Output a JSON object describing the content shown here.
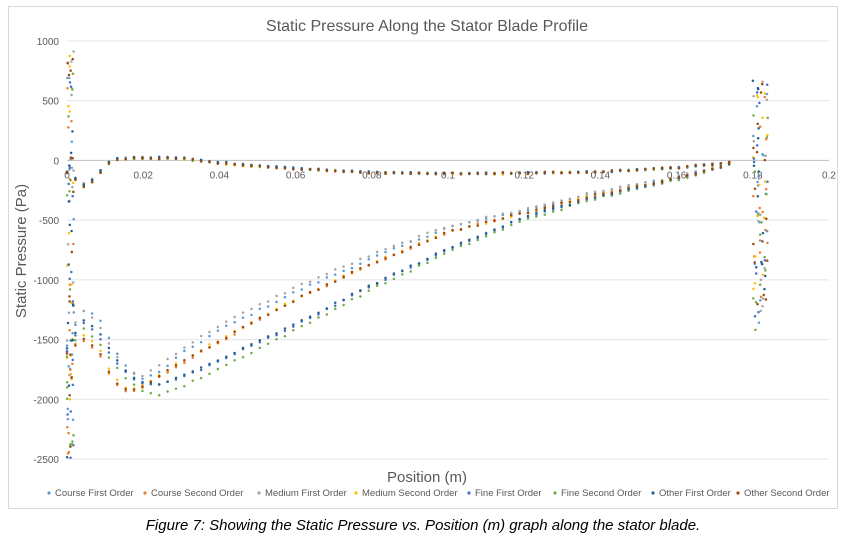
{
  "figure": {
    "caption": "Figure 7: Showing the Static Pressure vs. Position (m) graph along the stator blade."
  },
  "chart_data": {
    "type": "scatter",
    "title": "Static Pressure Along the Stator Blade Profile",
    "xlabel": "Position (m)",
    "ylabel": "Static Pressure (Pa)",
    "xlim": [
      0,
      0.2
    ],
    "ylim": [
      -2500,
      1000
    ],
    "x_ticks": [
      0,
      0.02,
      0.04,
      0.06,
      0.08,
      0.1,
      0.12,
      0.14,
      0.16,
      0.18,
      0.2
    ],
    "x_tick_labels": [
      "0",
      "0.02",
      "0.04",
      "0.06",
      "0.08",
      "0.1",
      "0.12",
      "0.14",
      "0.16",
      "0.18",
      "0.2"
    ],
    "y_ticks": [
      1000,
      500,
      0,
      -500,
      -1000,
      -1500,
      -2000,
      -2500
    ],
    "y_tick_labels": [
      "1000",
      "500",
      "0",
      "-500",
      "-1000",
      "-1500",
      "-2000",
      "-2500"
    ],
    "grid": "horizontal",
    "legend_position": "bottom",
    "series": [
      {
        "name": "Course First Order",
        "color": "#5B9BD5",
        "upper": {
          "x": [
            0.0,
            0.005,
            0.012,
            0.02,
            0.03,
            0.04,
            0.06,
            0.08,
            0.1,
            0.12,
            0.14,
            0.16,
            0.172,
            0.176
          ],
          "y": [
            -100,
            -220,
            15,
            25,
            20,
            -20,
            -65,
            -100,
            -110,
            -105,
            -95,
            -60,
            -25,
            -10
          ]
        },
        "lower": {
          "x": [
            0.0,
            0.004,
            0.008,
            0.012,
            0.016,
            0.02,
            0.024,
            0.03,
            0.04,
            0.06,
            0.08,
            0.1,
            0.12,
            0.14,
            0.16,
            0.172,
            0.176
          ],
          "y": [
            -1550,
            -1250,
            -1300,
            -1550,
            -1750,
            -1830,
            -1780,
            -1620,
            -1420,
            -1100,
            -820,
            -560,
            -420,
            -260,
            -140,
            -40,
            -10
          ]
        }
      },
      {
        "name": "Course Second Order",
        "color": "#ED7D31",
        "upper": {
          "x": [
            0.0,
            0.005,
            0.012,
            0.02,
            0.03,
            0.04,
            0.06,
            0.08,
            0.1,
            0.12,
            0.14,
            0.16,
            0.172,
            0.176
          ],
          "y": [
            -100,
            -210,
            10,
            20,
            15,
            -25,
            -70,
            -105,
            -110,
            -105,
            -95,
            -60,
            -25,
            -10
          ]
        },
        "lower": {
          "x": [
            0.0,
            0.004,
            0.008,
            0.012,
            0.016,
            0.02,
            0.024,
            0.03,
            0.04,
            0.06,
            0.08,
            0.1,
            0.12,
            0.14,
            0.16,
            0.172,
            0.176
          ],
          "y": [
            -1600,
            -1500,
            -1600,
            -1850,
            -1950,
            -1900,
            -1820,
            -1700,
            -1520,
            -1170,
            -870,
            -600,
            -440,
            -280,
            -150,
            -45,
            -10
          ]
        }
      },
      {
        "name": "Medium First Order",
        "color": "#A5A5A5",
        "upper": {
          "x": [
            0.0,
            0.005,
            0.012,
            0.02,
            0.03,
            0.04,
            0.06,
            0.08,
            0.1,
            0.12,
            0.14,
            0.16,
            0.172,
            0.176
          ],
          "y": [
            -100,
            -200,
            10,
            25,
            15,
            -20,
            -70,
            -100,
            -110,
            -105,
            -95,
            -60,
            -25,
            -10
          ]
        },
        "lower": {
          "x": [
            0.0,
            0.004,
            0.008,
            0.012,
            0.016,
            0.02,
            0.024,
            0.03,
            0.04,
            0.06,
            0.08,
            0.1,
            0.12,
            0.14,
            0.16,
            0.172,
            0.176
          ],
          "y": [
            -1500,
            -1250,
            -1350,
            -1600,
            -1780,
            -1800,
            -1720,
            -1580,
            -1380,
            -1060,
            -790,
            -550,
            -410,
            -255,
            -140,
            -40,
            -10
          ]
        }
      },
      {
        "name": "Medium Second Order",
        "color": "#FFC000",
        "upper": {
          "x": [
            0.0,
            0.005,
            0.012,
            0.02,
            0.03,
            0.04,
            0.06,
            0.08,
            0.1,
            0.12,
            0.14,
            0.16,
            0.172,
            0.176
          ],
          "y": [
            -100,
            -230,
            5,
            20,
            10,
            -30,
            -70,
            -100,
            -115,
            -110,
            -95,
            -60,
            -25,
            -10
          ]
        },
        "lower": {
          "x": [
            0.0,
            0.004,
            0.008,
            0.012,
            0.016,
            0.02,
            0.024,
            0.03,
            0.04,
            0.06,
            0.08,
            0.1,
            0.12,
            0.14,
            0.16,
            0.172,
            0.176
          ],
          "y": [
            -1650,
            -1450,
            -1550,
            -1800,
            -1930,
            -1880,
            -1800,
            -1680,
            -1500,
            -1160,
            -860,
            -600,
            -440,
            -280,
            -150,
            -45,
            -10
          ]
        }
      },
      {
        "name": "Fine First Order",
        "color": "#4472C4",
        "upper": {
          "x": [
            0.0,
            0.005,
            0.012,
            0.02,
            0.03,
            0.04,
            0.06,
            0.08,
            0.1,
            0.12,
            0.14,
            0.16,
            0.172,
            0.176
          ],
          "y": [
            -100,
            -220,
            10,
            25,
            20,
            -20,
            -65,
            -100,
            -110,
            -105,
            -95,
            -60,
            -25,
            -10
          ]
        },
        "lower": {
          "x": [
            0.0,
            0.004,
            0.008,
            0.012,
            0.016,
            0.02,
            0.024,
            0.03,
            0.04,
            0.06,
            0.08,
            0.1,
            0.12,
            0.14,
            0.16,
            0.172,
            0.176
          ],
          "y": [
            -1600,
            -1350,
            -1450,
            -1650,
            -1800,
            -1870,
            -1880,
            -1820,
            -1680,
            -1380,
            -1050,
            -750,
            -480,
            -300,
            -160,
            -50,
            -10
          ]
        }
      },
      {
        "name": "Fine Second Order",
        "color": "#70AD47",
        "upper": {
          "x": [
            0.0,
            0.005,
            0.012,
            0.02,
            0.03,
            0.04,
            0.06,
            0.08,
            0.1,
            0.12,
            0.14,
            0.16,
            0.172,
            0.176
          ],
          "y": [
            -100,
            -240,
            5,
            20,
            15,
            -25,
            -70,
            -105,
            -110,
            -105,
            -95,
            -60,
            -25,
            -10
          ]
        },
        "lower": {
          "x": [
            0.0,
            0.004,
            0.008,
            0.012,
            0.016,
            0.02,
            0.024,
            0.03,
            0.04,
            0.06,
            0.08,
            0.1,
            0.12,
            0.14,
            0.16,
            0.172,
            0.176
          ],
          "y": [
            -1650,
            -1400,
            -1500,
            -1700,
            -1850,
            -1930,
            -1960,
            -1900,
            -1740,
            -1420,
            -1080,
            -770,
            -500,
            -310,
            -165,
            -50,
            -10
          ]
        }
      },
      {
        "name": "Other First Order",
        "color": "#255E91",
        "upper": {
          "x": [
            0.0,
            0.005,
            0.012,
            0.02,
            0.03,
            0.04,
            0.06,
            0.08,
            0.1,
            0.12,
            0.14,
            0.16,
            0.172,
            0.176
          ],
          "y": [
            -100,
            -210,
            15,
            25,
            20,
            -15,
            -65,
            -100,
            -110,
            -105,
            -95,
            -60,
            -25,
            -10
          ]
        },
        "lower": {
          "x": [
            0.0,
            0.004,
            0.008,
            0.012,
            0.016,
            0.02,
            0.024,
            0.03,
            0.04,
            0.06,
            0.08,
            0.1,
            0.12,
            0.14,
            0.16,
            0.172,
            0.176
          ],
          "y": [
            -1580,
            -1330,
            -1420,
            -1630,
            -1790,
            -1860,
            -1870,
            -1810,
            -1670,
            -1370,
            -1040,
            -740,
            -470,
            -295,
            -155,
            -48,
            -10
          ]
        }
      },
      {
        "name": "Other Second Order",
        "color": "#9E480E",
        "upper": {
          "x": [
            0.0,
            0.005,
            0.012,
            0.02,
            0.03,
            0.04,
            0.06,
            0.08,
            0.1,
            0.12,
            0.14,
            0.16,
            0.172,
            0.176
          ],
          "y": [
            -100,
            -230,
            5,
            20,
            15,
            -25,
            -70,
            -105,
            -110,
            -105,
            -95,
            -60,
            -25,
            -10
          ]
        },
        "lower": {
          "x": [
            0.0,
            0.004,
            0.008,
            0.012,
            0.016,
            0.02,
            0.024,
            0.03,
            0.04,
            0.06,
            0.08,
            0.1,
            0.12,
            0.14,
            0.16,
            0.172,
            0.176
          ],
          "y": [
            -1620,
            -1480,
            -1580,
            -1830,
            -1940,
            -1890,
            -1810,
            -1690,
            -1510,
            -1165,
            -865,
            -600,
            -440,
            -280,
            -150,
            -45,
            -10
          ]
        }
      }
    ],
    "spikes": {
      "leading_edge_x": 0.0,
      "leading_edge_y_range": [
        -2500,
        950
      ],
      "trailing_edge_x": [
        0.18,
        0.184
      ],
      "trailing_edge_y_range": [
        -1450,
        700
      ]
    }
  }
}
